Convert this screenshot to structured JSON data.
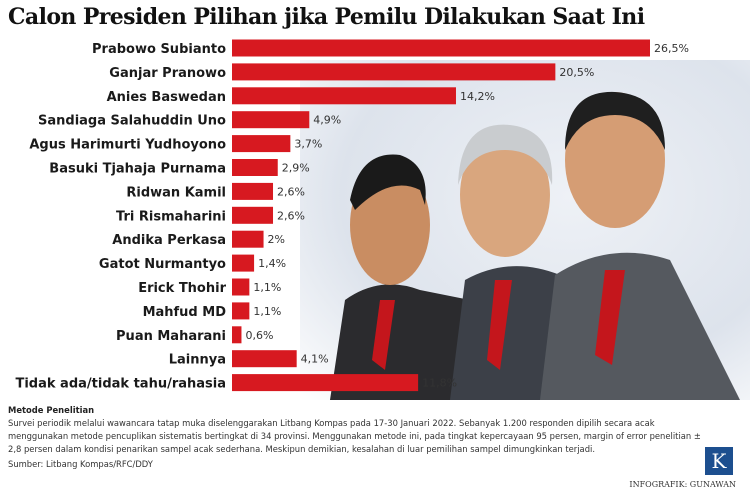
{
  "chart_data": {
    "type": "bar",
    "orientation": "horizontal",
    "title": "Calon Presiden Pilihan jika Pemilu Dilakukan Saat Ini",
    "categories": [
      "Prabowo Subianto",
      "Ganjar Pranowo",
      "Anies Baswedan",
      "Sandiaga Salahuddin Uno",
      "Agus Harimurti Yudhoyono",
      "Basuki Tjahaja Purnama",
      "Ridwan Kamil",
      "Tri Rismaharini",
      "Andika Perkasa",
      "Gatot Nurmantyo",
      "Erick Thohir",
      "Mahfud MD",
      "Puan Maharani",
      "Lainnya",
      "Tidak ada/tidak tahu/rahasia"
    ],
    "values": [
      26.5,
      20.5,
      14.2,
      4.9,
      3.7,
      2.9,
      2.6,
      2.6,
      2,
      1.4,
      1.1,
      1.1,
      0.6,
      4.1,
      11.8
    ],
    "value_labels": [
      "26,5%",
      "20,5%",
      "14,2%",
      "4,9%",
      "3,7%",
      "2,9%",
      "2,6%",
      "2,6%",
      "2%",
      "1,4%",
      "1,1%",
      "1,1%",
      "0,6%",
      "4,1%",
      "11,8%"
    ],
    "bar_color": "#d71920",
    "xlim": [
      0,
      26.5
    ],
    "grid": false
  },
  "notes": {
    "heading": "Metode Penelitian",
    "body": "Survei periodik melalui wawancara tatap muka diselenggarakan Litbang Kompas pada 17-30 Januari 2022. Sebanyak 1.200 responden dipilih secara acak menggunakan metode pencuplikan sistematis bertingkat di 34 provinsi. Menggunakan metode ini, pada tingkat kepercayaan 95 persen, margin of error penelitian ± 2,8 persen dalam kondisi penarikan sampel acak sederhana. Meskipun demikian, kesalahan di luar pemilihan sampel dimungkinkan terjadi.",
    "source": "Sumber: Litbang Kompas/RFC/DDY"
  },
  "logo": "K",
  "credit": "INFOGRAFIK: GUNAWAN"
}
